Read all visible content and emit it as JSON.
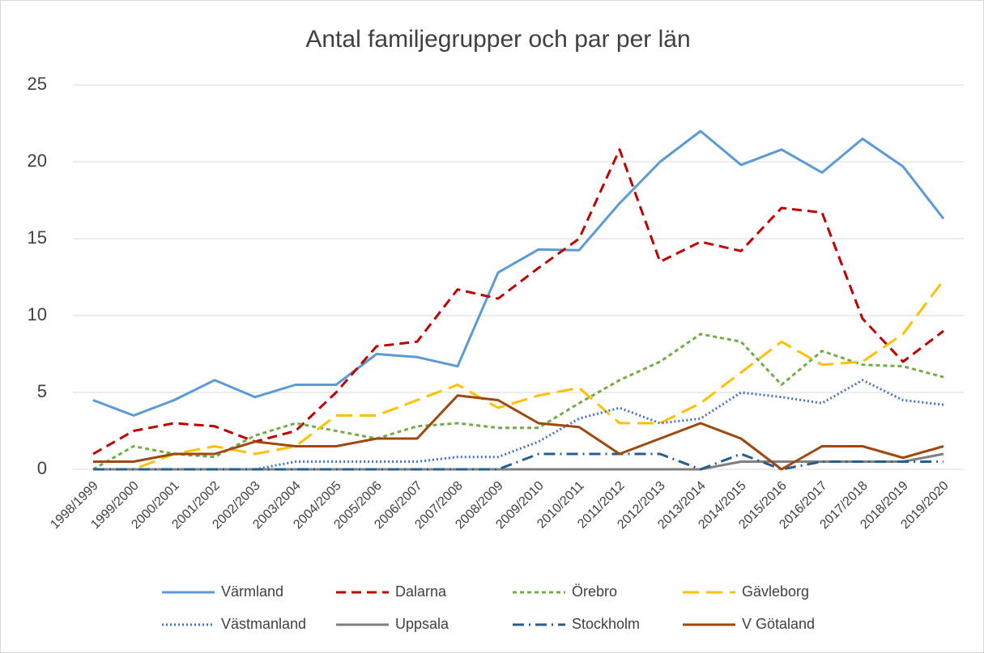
{
  "chart_data": {
    "type": "line",
    "title": "Antal familjegrupper och par per län",
    "categories": [
      "1998/1999",
      "1999/2000",
      "2000/2001",
      "2001/2002",
      "2002/2003",
      "2003/2004",
      "2004/2005",
      "2005/2006",
      "2006/2007",
      "2007/2008",
      "2008/2009",
      "2009/2010",
      "2010/2011",
      "2011/2012",
      "2012/2013",
      "2013/2014",
      "2014/2015",
      "2015/2016",
      "2016/2017",
      "2017/2018",
      "2018/2019",
      "2019/2020"
    ],
    "ylim": [
      0,
      25
    ],
    "yticks": [
      0,
      5,
      10,
      15,
      20,
      25
    ],
    "grid": true,
    "legend": "bottom",
    "series": [
      {
        "name": "Värmland",
        "color": "#5b9bd5",
        "dash": "solid",
        "values": [
          4.5,
          3.5,
          4.5,
          5.8,
          4.7,
          5.5,
          5.5,
          7.5,
          7.3,
          6.7,
          12.8,
          14.3,
          14.25,
          17.3,
          20,
          22,
          19.8,
          20.8,
          19.3,
          21.5,
          19.7,
          16.3
        ]
      },
      {
        "name": "Dalarna",
        "color": "#c00000",
        "dash": "dashed",
        "values": [
          1,
          2.5,
          3,
          2.8,
          1.8,
          2.5,
          5,
          8,
          8.3,
          11.7,
          11.1,
          13.1,
          15,
          20.8,
          13.5,
          14.8,
          14.2,
          17,
          16.7,
          9.8,
          7,
          9
        ]
      },
      {
        "name": "Örebro",
        "color": "#70ad47",
        "dash": "short-dashed",
        "values": [
          0,
          1.5,
          1,
          0.8,
          2.2,
          3,
          2.5,
          2,
          2.8,
          3,
          2.7,
          2.7,
          4.3,
          5.8,
          7,
          8.8,
          8.3,
          5.5,
          7.7,
          6.8,
          6.7,
          6
        ]
      },
      {
        "name": "Gävleborg",
        "color": "#ffc000",
        "dash": "long-dashed",
        "values": [
          0,
          0,
          1,
          1.5,
          1,
          1.5,
          3.5,
          3.5,
          4.5,
          5.5,
          4,
          4.8,
          5.3,
          3,
          3,
          4.3,
          6.3,
          8.3,
          6.8,
          7,
          8.8,
          12.3
        ]
      },
      {
        "name": "Västmanland",
        "color": "#4472c4",
        "dash": "dotted",
        "values": [
          0,
          0,
          0,
          0,
          0,
          0.5,
          0.5,
          0.5,
          0.5,
          0.8,
          0.8,
          1.8,
          3.3,
          4,
          3,
          3.3,
          5,
          4.7,
          4.3,
          5.8,
          4.5,
          4.2
        ]
      },
      {
        "name": "Uppsala",
        "color": "#7f7f7f",
        "dash": "solid",
        "values": [
          0,
          0,
          0,
          0,
          0,
          0,
          0,
          0,
          0,
          0,
          0,
          0,
          0,
          0,
          0,
          0,
          0.5,
          0.5,
          0.5,
          0.5,
          0.5,
          1
        ]
      },
      {
        "name": "Stockholm",
        "color": "#255e91",
        "dash": "dash-dot",
        "values": [
          0,
          0,
          0,
          0,
          0,
          0,
          0,
          0,
          0,
          0,
          0,
          1,
          1,
          1,
          1,
          0,
          1,
          0,
          0.5,
          0.5,
          0.5,
          0.5
        ]
      },
      {
        "name": "V Götaland",
        "color": "#9e480e",
        "dash": "solid",
        "values": [
          0.5,
          0.5,
          1,
          1,
          1.8,
          1.5,
          1.5,
          2,
          2,
          4.8,
          4.5,
          3,
          2.75,
          1,
          2,
          3,
          2,
          0,
          1.5,
          1.5,
          0.75,
          1.5
        ]
      }
    ]
  }
}
